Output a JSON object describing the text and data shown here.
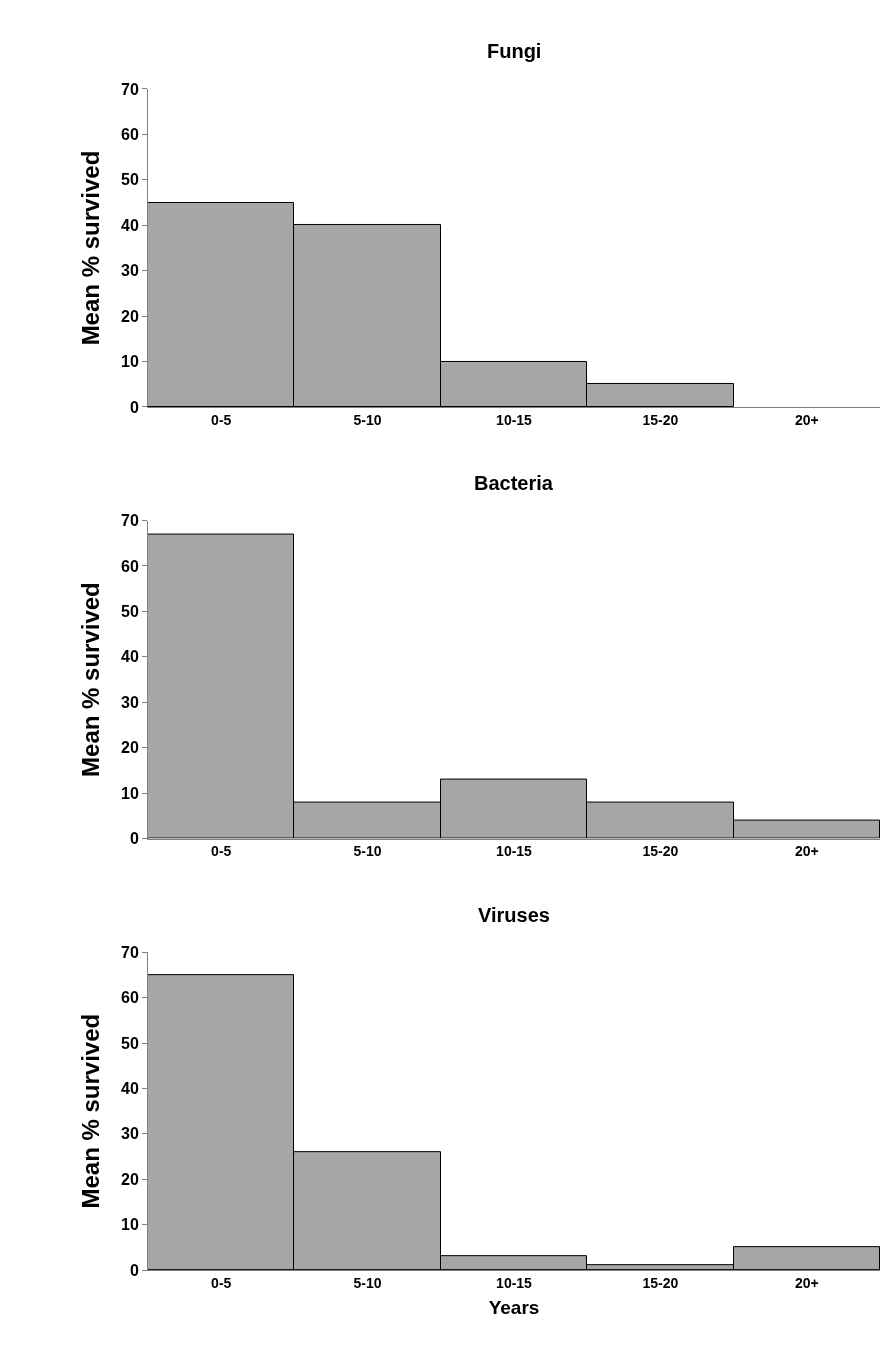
{
  "chart_data": [
    {
      "type": "bar",
      "title": "Fungi",
      "ylabel": "Mean % survived",
      "categories": [
        "0-5",
        "5-10",
        "10-15",
        "15-20",
        "20+"
      ],
      "values": [
        45,
        40,
        10,
        5,
        null
      ],
      "color": "#a6a6a6",
      "ylim": [
        0,
        70
      ],
      "yticks": [
        0,
        10,
        20,
        30,
        40,
        50,
        60,
        70
      ]
    },
    {
      "type": "bar",
      "title": "Bacteria",
      "ylabel": "Mean % survived",
      "categories": [
        "0-5",
        "5-10",
        "10-15",
        "15-20",
        "20+"
      ],
      "values": [
        67,
        8,
        13,
        8,
        4
      ],
      "color": "#a6a6a6",
      "ylim": [
        0,
        70
      ],
      "yticks": [
        0,
        10,
        20,
        30,
        40,
        50,
        60,
        70
      ]
    },
    {
      "type": "bar",
      "title": "Viruses",
      "ylabel": "Mean % survived",
      "xlabel": "Years",
      "categories": [
        "0-5",
        "5-10",
        "10-15",
        "15-20",
        "20+"
      ],
      "values": [
        65,
        26,
        3,
        1,
        5
      ],
      "color": "#a6a6a6",
      "ylim": [
        0,
        70
      ],
      "yticks": [
        0,
        10,
        20,
        30,
        40,
        50,
        60,
        70
      ]
    }
  ]
}
